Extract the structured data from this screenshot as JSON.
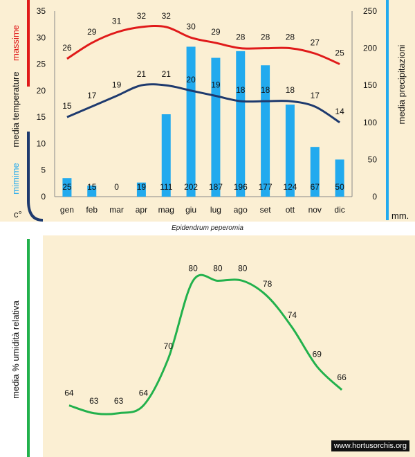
{
  "colors": {
    "background": "#fbefd3",
    "bar": "#22aaee",
    "max_line": "#e01a1a",
    "min_line": "#1e3a6e",
    "precip_bracket": "#22aaee",
    "humidity_line": "#22b14c"
  },
  "caption": "Epidendrum peperomia",
  "watermark": "www.hortusorchis.org",
  "chart_data": [
    {
      "type": "bar+line",
      "categories": [
        "gen",
        "feb",
        "mar",
        "apr",
        "mag",
        "giu",
        "lug",
        "ago",
        "set",
        "ott",
        "nov",
        "dic"
      ],
      "left_axis": {
        "ylim": [
          0,
          35
        ],
        "ticks": [
          0,
          5,
          10,
          15,
          20,
          25,
          30,
          35
        ],
        "title_parts": [
          "massime",
          "media  temperature",
          "mimime",
          "c°"
        ]
      },
      "right_axis": {
        "ylim": [
          0,
          250
        ],
        "ticks": [
          0,
          50,
          100,
          150,
          200,
          250
        ],
        "title": "media  precipitazioni",
        "unit": "mm."
      },
      "series": [
        {
          "name": "massime",
          "kind": "line",
          "axis": "left",
          "values": [
            26,
            29,
            31,
            32,
            32,
            30,
            29,
            28,
            28,
            28,
            27,
            25
          ]
        },
        {
          "name": "mimime",
          "kind": "line",
          "axis": "left",
          "values": [
            15,
            17,
            19,
            21,
            21,
            20,
            19,
            18,
            18,
            18,
            17,
            14
          ]
        },
        {
          "name": "media  precipitazioni",
          "kind": "bar",
          "axis": "right",
          "values": [
            25,
            15,
            0,
            19,
            111,
            202,
            187,
            196,
            177,
            124,
            67,
            50
          ]
        }
      ],
      "grid": false
    },
    {
      "type": "line",
      "title": "media %  umidità relativa",
      "values": [
        64,
        63,
        63,
        64,
        70,
        80,
        80,
        80,
        78,
        74,
        69,
        66
      ],
      "ylim": [
        62,
        82
      ],
      "grid": false
    }
  ]
}
